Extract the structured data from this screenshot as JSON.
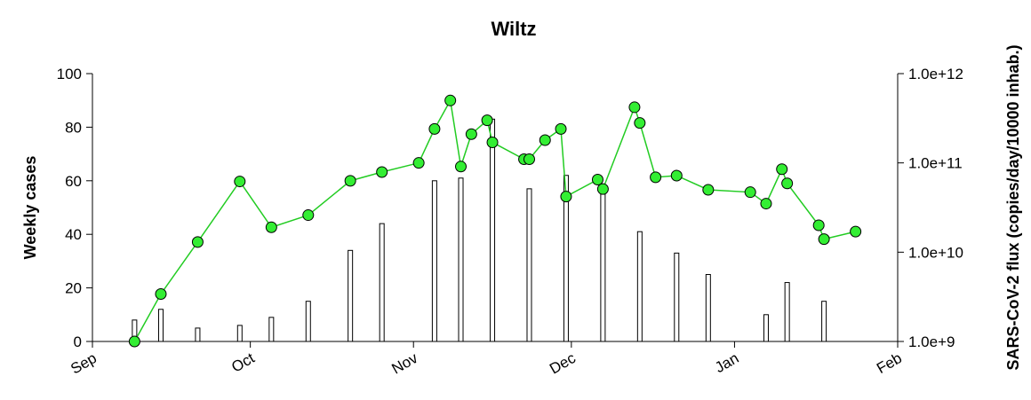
{
  "chart_data": {
    "type": "bar-line",
    "title": "Wiltz",
    "y_label": "Weekly cases",
    "y2_label": "SARS-CoV-2 flux (copies/day/10000 inhab.)",
    "xlim": [
      0,
      153
    ],
    "xticks": [
      {
        "value": 0,
        "label": "Sep"
      },
      {
        "value": 30,
        "label": "Oct"
      },
      {
        "value": 61,
        "label": "Nov"
      },
      {
        "value": 91,
        "label": "Dec"
      },
      {
        "value": 122,
        "label": "Jan"
      },
      {
        "value": 153,
        "label": "Feb"
      }
    ],
    "ylim": [
      0,
      100
    ],
    "yticks": [
      0,
      20,
      40,
      60,
      80,
      100
    ],
    "y2lim": [
      1000000000,
      1000000000000
    ],
    "y2scale": "log",
    "y2ticks": [
      {
        "value": 1000000000,
        "label": "1.0e+9"
      },
      {
        "value": 10000000000,
        "label": "1.0e+10"
      },
      {
        "value": 100000000000,
        "label": "1.0e+11"
      },
      {
        "value": 1000000000000,
        "label": "1.0e+12"
      }
    ],
    "series": [
      {
        "name": "Weekly cases",
        "kind": "bar",
        "color": "#ffffff",
        "x": [
          8,
          13,
          20,
          28,
          34,
          41,
          49,
          55,
          65,
          70,
          76,
          83,
          90,
          97,
          104,
          111,
          117,
          128,
          132,
          139
        ],
        "values": [
          8,
          12,
          5,
          6,
          9,
          15,
          34,
          44,
          60,
          61,
          83,
          57,
          62,
          55,
          41,
          33,
          25,
          10,
          22,
          15
        ]
      },
      {
        "name": "SARS-CoV-2 flux",
        "kind": "line",
        "axis": "y2",
        "color": "#33ee33",
        "x": [
          8,
          13,
          20,
          28,
          34,
          41,
          49,
          55,
          62,
          65,
          68,
          70,
          72,
          75,
          76,
          82,
          83,
          86,
          89,
          90,
          96,
          97,
          103,
          104,
          107,
          111,
          117,
          125,
          128,
          131,
          132,
          138,
          139,
          145
        ],
        "values": [
          1000000000,
          3400000000,
          13000000000,
          62000000000,
          19000000000,
          26000000000,
          63000000000,
          79000000000,
          100000000000,
          240000000000,
          500000000000,
          91000000000,
          210000000000,
          300000000000,
          170000000000,
          110000000000,
          110000000000,
          180000000000,
          240000000000,
          42000000000,
          65000000000,
          51000000000,
          420000000000,
          280000000000,
          69000000000,
          72000000000,
          50000000000,
          47000000000,
          35000000000,
          85000000000,
          59000000000,
          20000000000,
          14000000000,
          17000000000
        ]
      }
    ]
  }
}
